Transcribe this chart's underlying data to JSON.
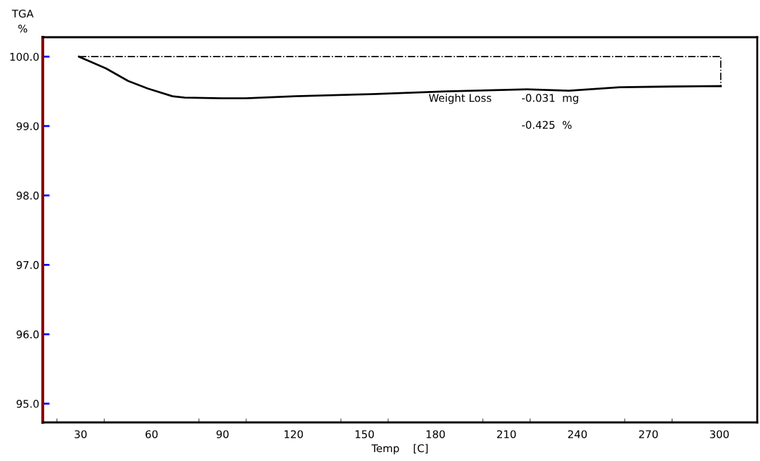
{
  "chart_data": {
    "type": "line",
    "xlabel": "Temp    [C]",
    "ylabel": "TGA\n%",
    "series": [
      {
        "color": "#000000",
        "line_style": "solid",
        "x": [
          29.3,
          40.7,
          50.1,
          58.4,
          68.8,
          74,
          89.6,
          99.9,
          120.8,
          153,
          184.4,
          218.7,
          236.4,
          257.8,
          280.9,
          300.6
        ],
        "values": [
          100.0,
          99.83,
          99.65,
          99.54,
          99.43,
          99.41,
          99.4,
          99.4,
          99.43,
          99.46,
          99.5,
          99.53,
          99.51,
          99.56,
          99.57,
          99.575
        ]
      },
      {
        "color": "#000000",
        "line_style": "dashdot",
        "x": [
          29.3,
          300.6,
          300.6
        ],
        "values": [
          100.0,
          100.0,
          99.575
        ]
      }
    ],
    "xlim": [
      14,
      316
    ],
    "ylim": [
      94.73,
      100.28
    ],
    "xticks": [
      {
        "value": 20,
        "label": null
      },
      30,
      {
        "value": 40,
        "label": null
      },
      60,
      {
        "value": 80,
        "label": null
      },
      90,
      {
        "value": 100,
        "label": null
      },
      120,
      {
        "value": 140,
        "label": null
      },
      150,
      {
        "value": 160,
        "label": null
      },
      180,
      {
        "value": 200,
        "label": null
      },
      210,
      {
        "value": 220,
        "label": null
      },
      240,
      {
        "value": 260,
        "label": null
      },
      270,
      {
        "value": 280,
        "label": null
      },
      300
    ],
    "yticks": [
      {
        "value": 95,
        "label": "95.0"
      },
      {
        "value": 96,
        "label": "96.0"
      },
      {
        "value": 97,
        "label": "97.0"
      },
      {
        "value": 98,
        "label": "98.0"
      },
      {
        "value": 99,
        "label": "99.0"
      },
      {
        "value": 100,
        "label": "100.0"
      }
    ],
    "grid": false,
    "legend": false,
    "annotations": [
      "Weight Loss",
      "-0.031  mg",
      "-0.425  %"
    ]
  }
}
